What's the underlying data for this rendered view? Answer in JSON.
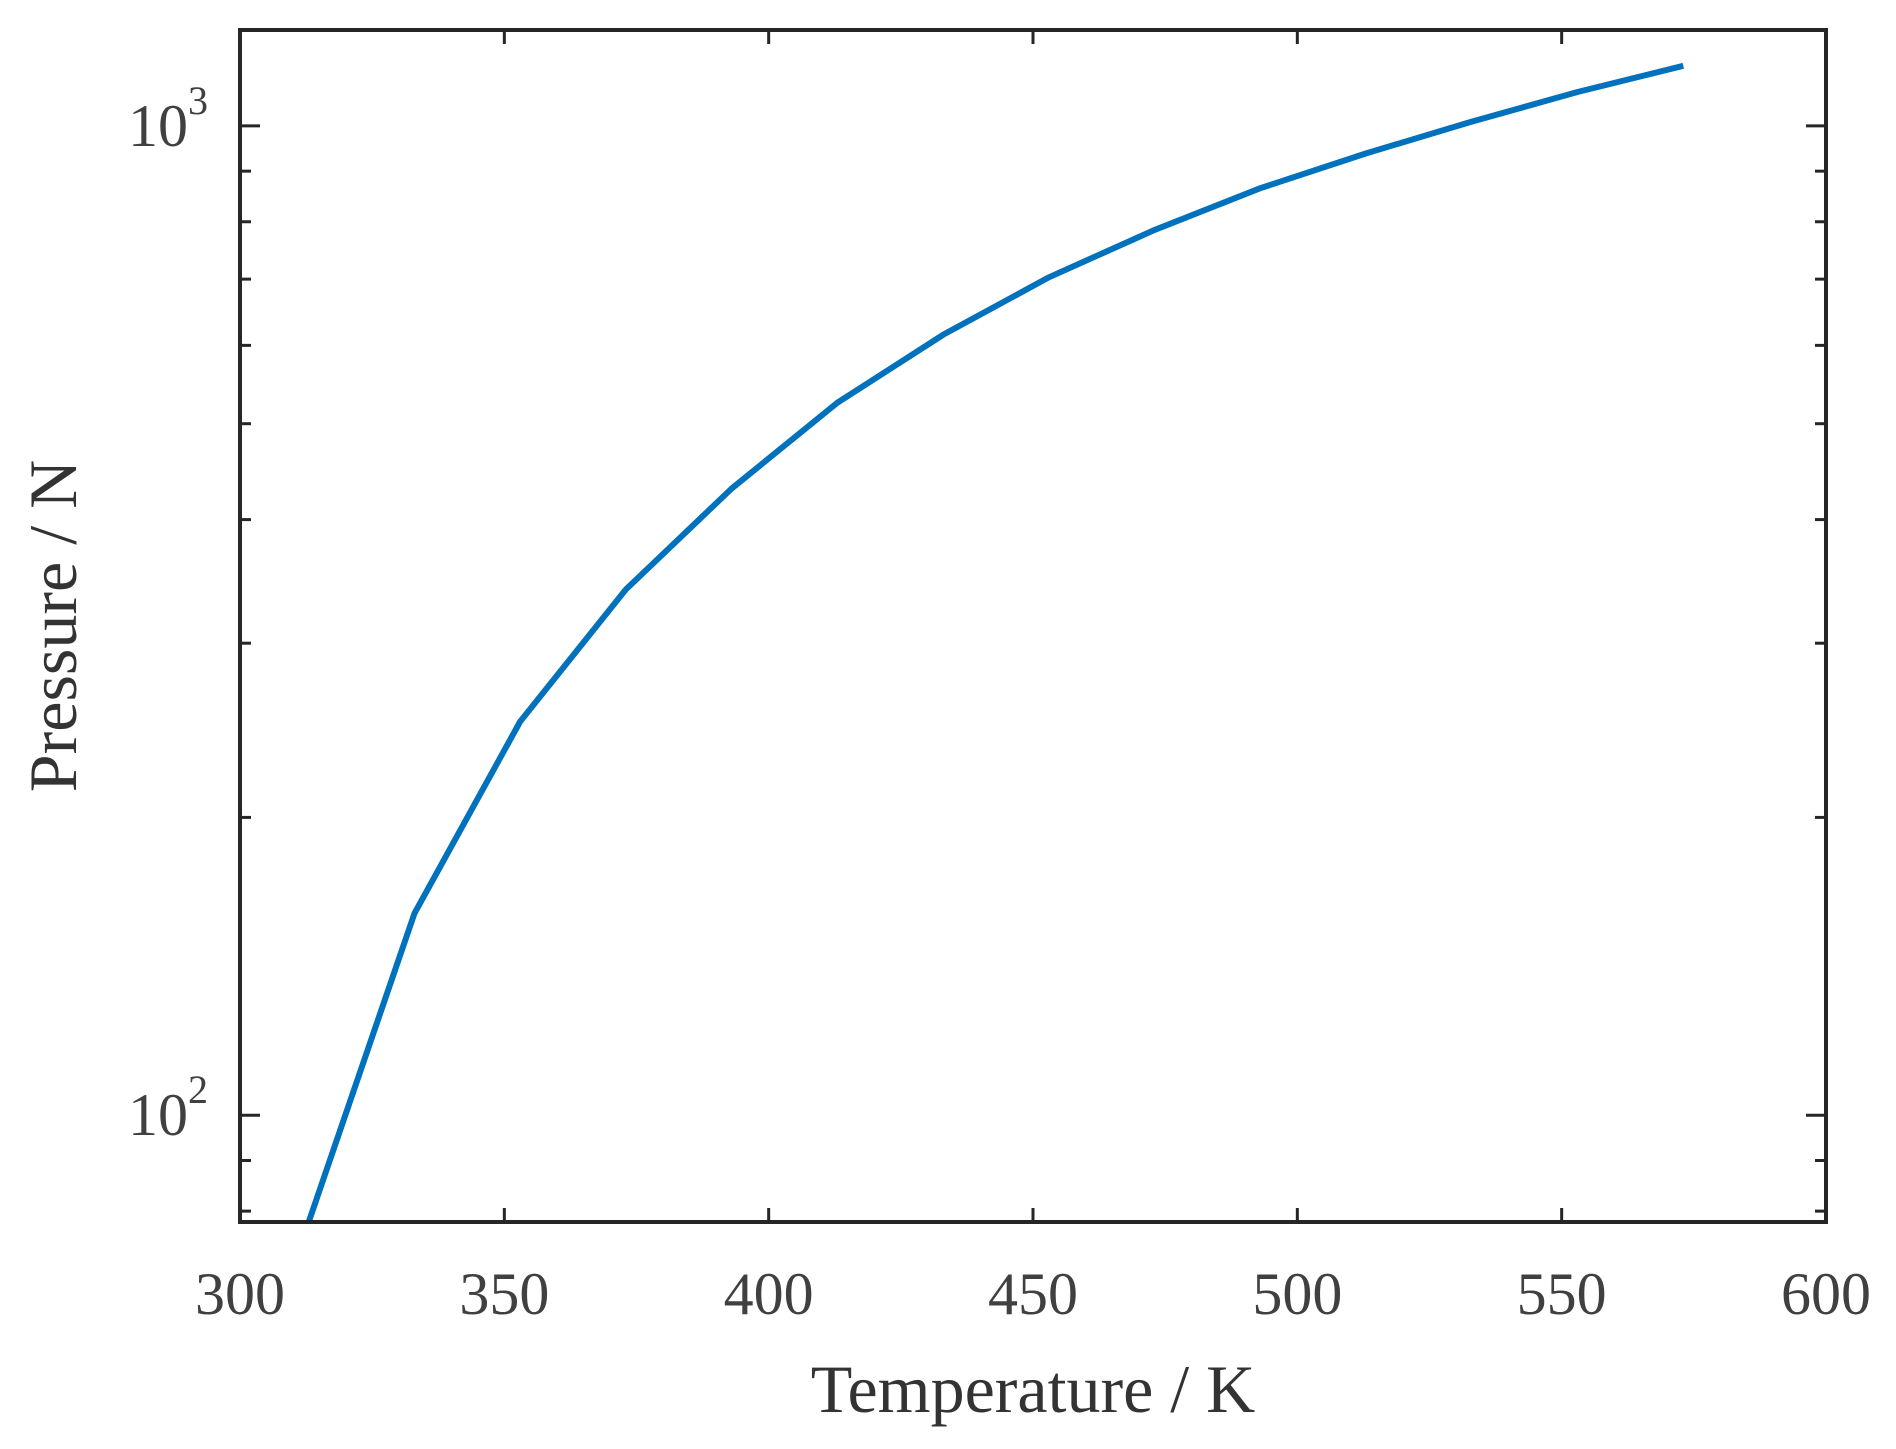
{
  "chart_data": {
    "type": "line",
    "title": "",
    "xlabel": "Temperature / K",
    "ylabel": "Pressure / N",
    "xlim": [
      300,
      600
    ],
    "ylim": [
      78,
      1250
    ],
    "y_scale": "log",
    "grid": false,
    "legend": "none",
    "x_ticks": [
      "300",
      "350",
      "400",
      "450",
      "500",
      "550",
      "600"
    ],
    "y_ticks": [
      {
        "base": "10",
        "exp": "2"
      },
      {
        "base": "10",
        "exp": "3"
      }
    ],
    "series": [
      {
        "color": "#0072bd",
        "x": [
          313,
          333,
          353,
          373,
          393,
          413,
          433,
          453,
          473,
          493,
          513,
          533,
          553,
          573
        ],
        "y": [
          78,
          160,
          250,
          340,
          430,
          525,
          615,
          703,
          785,
          865,
          938,
          1010,
          1082,
          1150
        ]
      }
    ]
  }
}
